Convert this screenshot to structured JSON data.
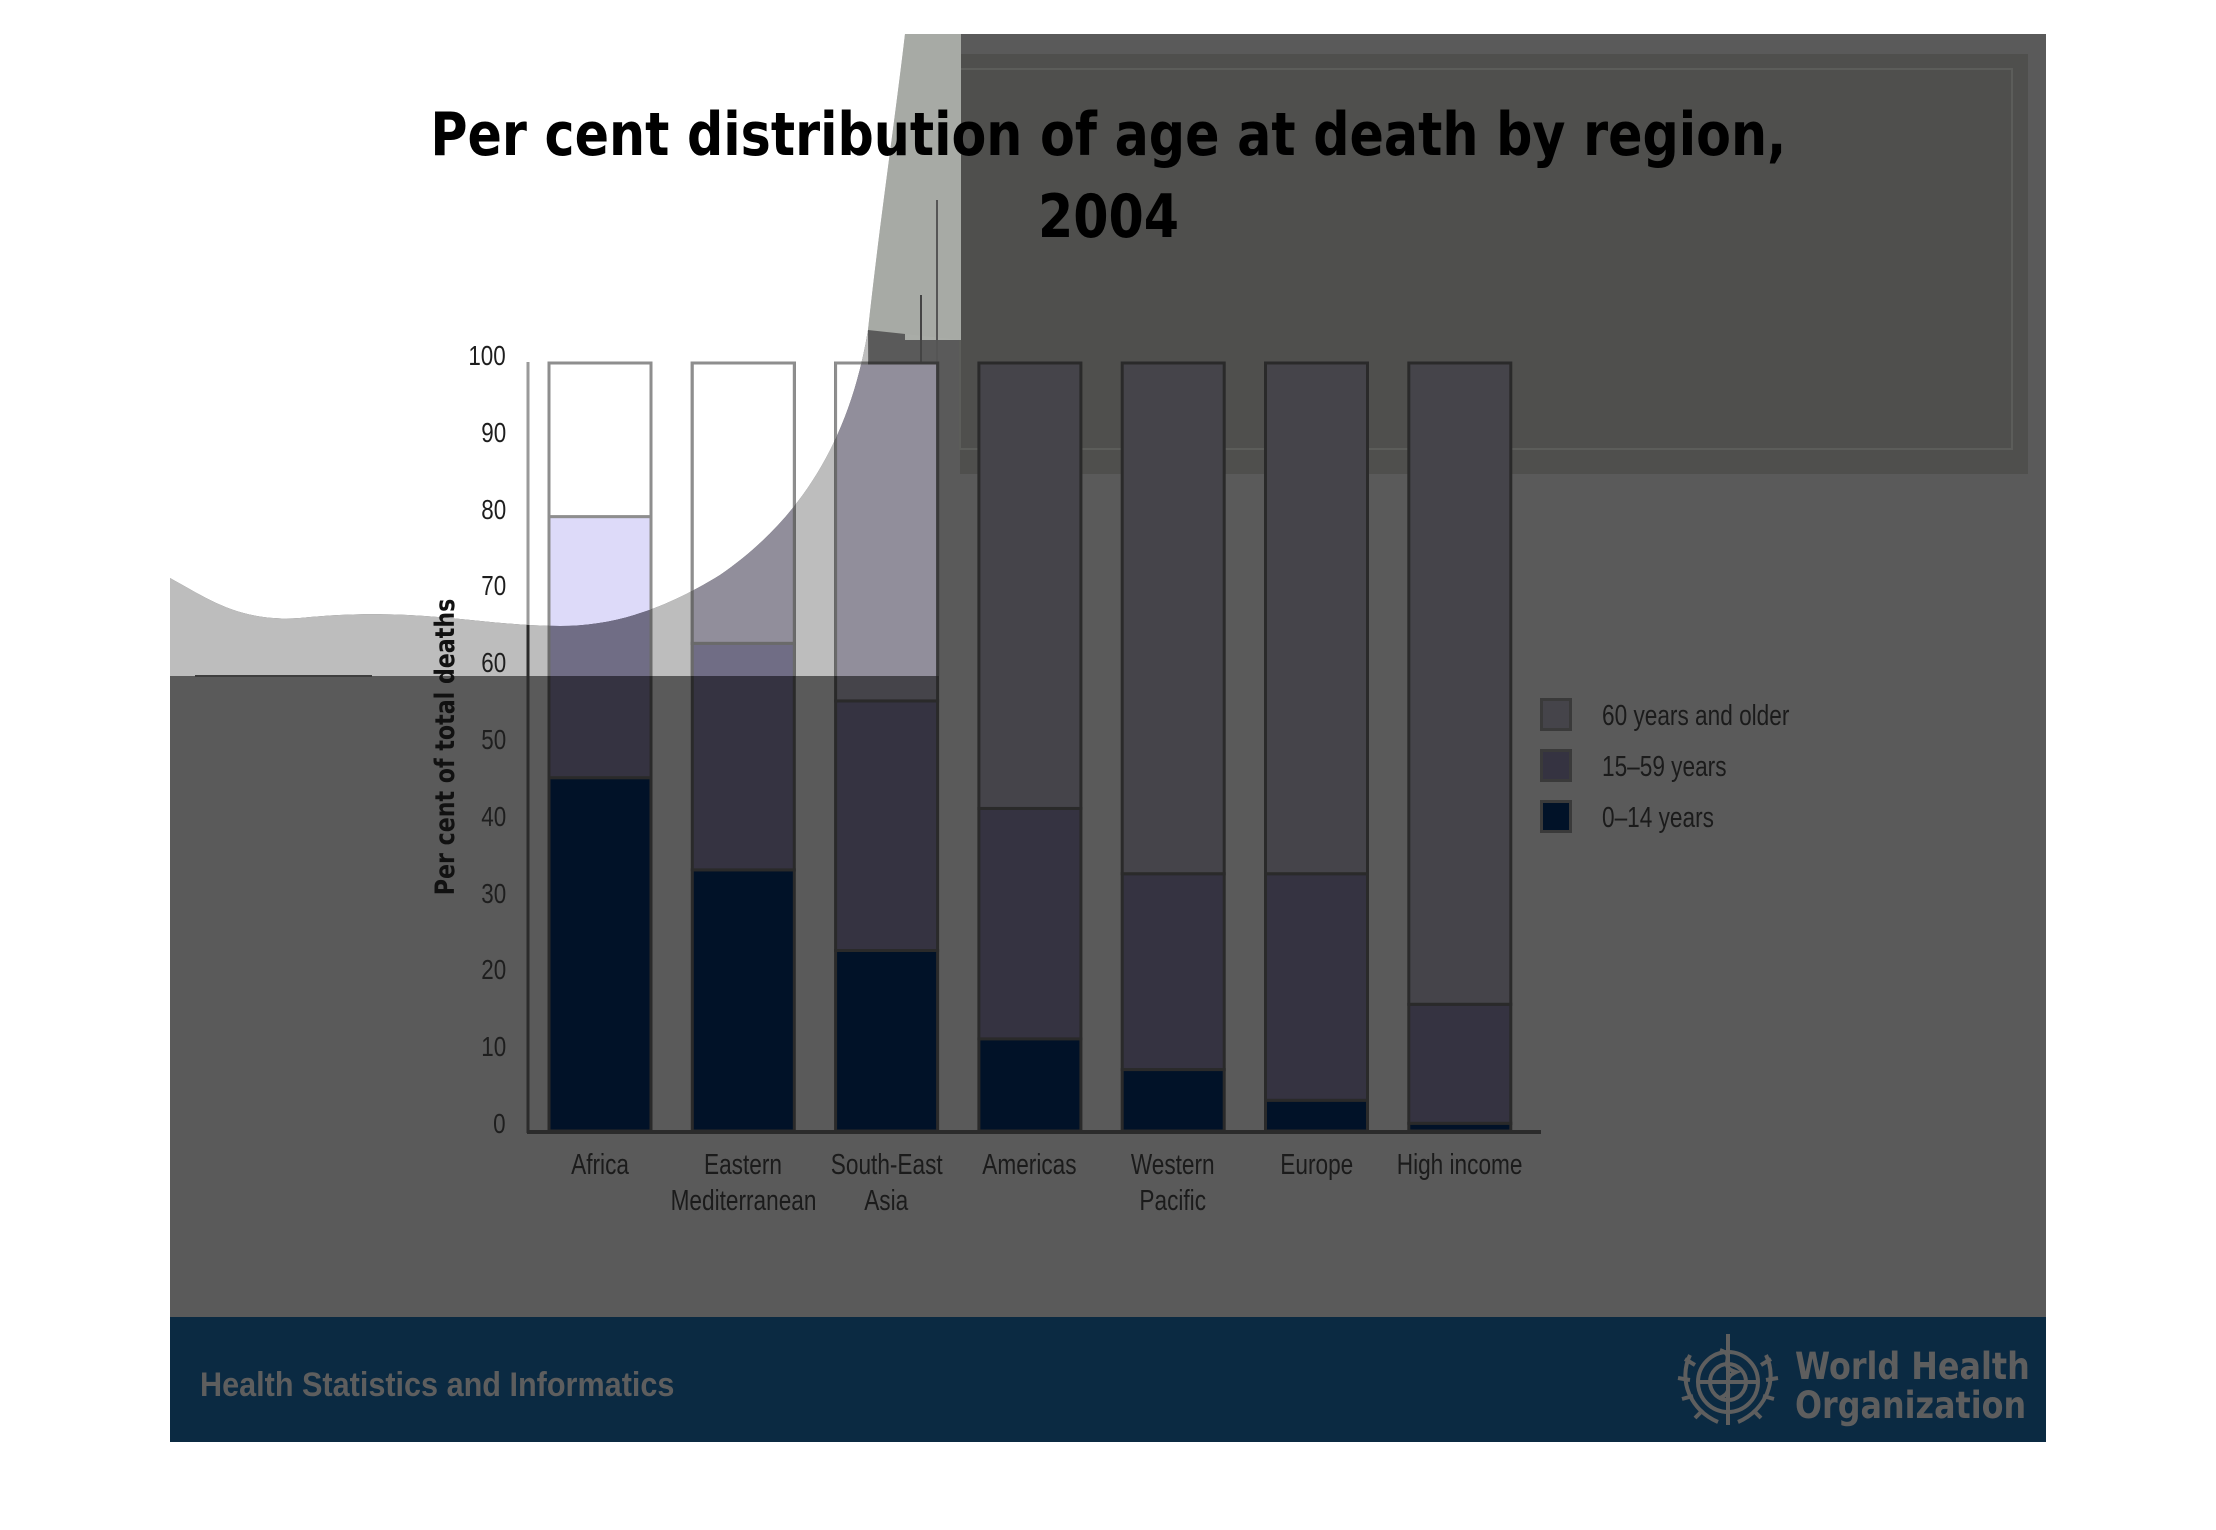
{
  "slide": {
    "title_line1": "Per cent distribution of age at death by region,",
    "title_line2": "2004",
    "footer_left": "Health Statistics and Informatics",
    "footer_org_line1": "World Health",
    "footer_org_line2": "Organization",
    "logo_icon": "who-emblem-icon",
    "colors": {
      "slide_background": "#5a5a5a",
      "footer_band": "#0b2a42",
      "footer_text": "#5e5e5e",
      "top_panel": "#4f4f4d"
    }
  },
  "chart_data": {
    "type": "bar",
    "stacked": true,
    "title": "Per cent distribution of age at death by region, 2004",
    "xlabel": "",
    "ylabel": "Per cent of total deaths",
    "ylim": [
      0,
      100
    ],
    "yticks": [
      "0",
      "10",
      "20",
      "30",
      "40",
      "50",
      "60",
      "70",
      "80",
      "90",
      "100"
    ],
    "grid": false,
    "legend_position": "right",
    "categories": [
      [
        "Africa"
      ],
      [
        "Eastern",
        "Mediterranean"
      ],
      [
        "South-East",
        "Asia"
      ],
      [
        "Americas"
      ],
      [
        "Western",
        "Pacific"
      ],
      [
        "Europe"
      ],
      [
        "High income"
      ]
    ],
    "series": [
      {
        "name": "0–14 years",
        "color": "#011228",
        "values": [
          46,
          34,
          23.5,
          12,
          8,
          4,
          1
        ]
      },
      {
        "name": "15–59 years",
        "color": "#353341",
        "values": [
          34,
          29.5,
          32.5,
          30,
          25.5,
          29.5,
          15.5
        ]
      },
      {
        "name": "60 years and older",
        "color": "#45444a",
        "values": [
          20,
          36.5,
          44,
          58,
          66.5,
          66.5,
          83.5
        ]
      }
    ],
    "legend_order": [
      "60 years and older",
      "15–59 years",
      "0–14 years"
    ]
  }
}
